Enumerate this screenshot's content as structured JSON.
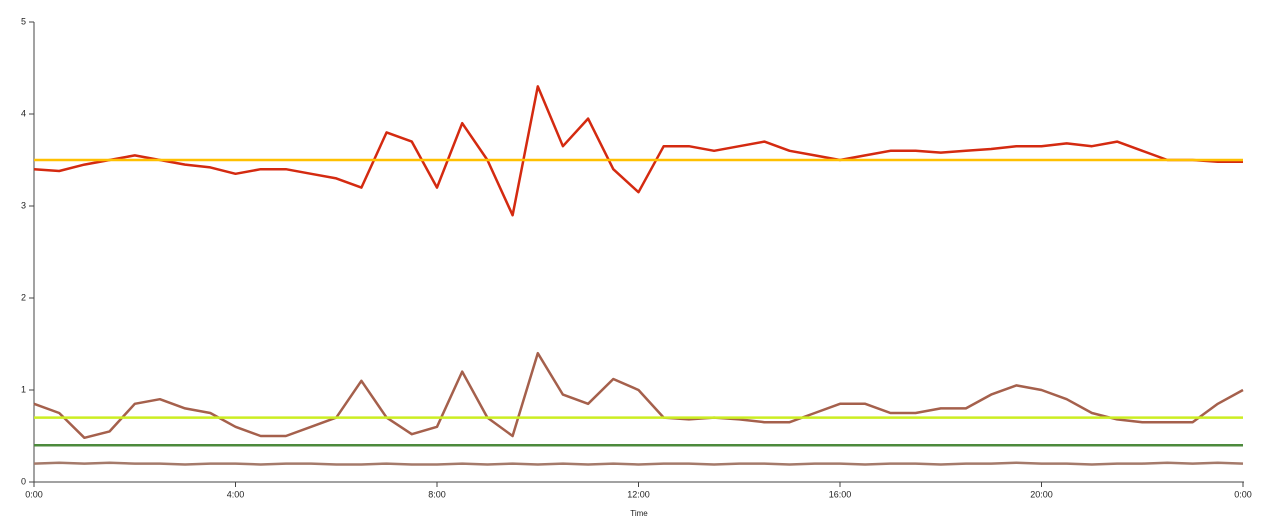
{
  "chart_data": {
    "type": "line",
    "x_label": "Time",
    "x": [
      0,
      0.5,
      1,
      1.5,
      2,
      2.5,
      3,
      3.5,
      4,
      4.5,
      5,
      5.5,
      6,
      6.5,
      7,
      7.5,
      8,
      8.5,
      9,
      9.5,
      10,
      10.5,
      11,
      11.5,
      12,
      12.5,
      13,
      13.5,
      14,
      14.5,
      15,
      15.5,
      16,
      16.5,
      17,
      17.5,
      18,
      18.5,
      19,
      19.5,
      20,
      20.5,
      21,
      21.5,
      22,
      22.5,
      23,
      23.5,
      24
    ],
    "xlim": [
      0,
      24
    ],
    "xticks": [
      {
        "value": 0,
        "label": "0:00"
      },
      {
        "value": 4,
        "label": "4:00"
      },
      {
        "value": 8,
        "label": "8:00"
      },
      {
        "value": 12,
        "label": "12:00"
      },
      {
        "value": 16,
        "label": "16:00"
      },
      {
        "value": 20,
        "label": "20:00"
      },
      {
        "value": 24,
        "label": "0:00"
      }
    ],
    "ylim": [
      0,
      5
    ],
    "yticks": [
      0,
      1,
      2,
      3,
      4,
      5
    ],
    "series": [
      {
        "color": "#d42a10",
        "values": [
          3.4,
          3.38,
          3.45,
          3.5,
          3.55,
          3.5,
          3.45,
          3.42,
          3.35,
          3.4,
          3.4,
          3.35,
          3.3,
          3.2,
          3.8,
          3.7,
          3.2,
          3.9,
          3.5,
          2.9,
          4.3,
          3.65,
          3.95,
          3.4,
          3.15,
          3.65,
          3.65,
          3.6,
          3.65,
          3.7,
          3.6,
          3.55,
          3.5,
          3.55,
          3.6,
          3.6,
          3.58,
          3.6,
          3.62,
          3.65,
          3.65,
          3.68,
          3.65,
          3.7,
          3.6,
          3.5,
          3.5,
          3.48,
          3.48
        ]
      },
      {
        "color": "#ffc000",
        "values": [
          3.5,
          3.5,
          3.5,
          3.5,
          3.5,
          3.5,
          3.5,
          3.5,
          3.5,
          3.5,
          3.5,
          3.5,
          3.5,
          3.5,
          3.5,
          3.5,
          3.5,
          3.5,
          3.5,
          3.5,
          3.5,
          3.5,
          3.5,
          3.5,
          3.5,
          3.5,
          3.5,
          3.5,
          3.5,
          3.5,
          3.5,
          3.5,
          3.5,
          3.5,
          3.5,
          3.5,
          3.5,
          3.5,
          3.5,
          3.5,
          3.5,
          3.5,
          3.5,
          3.5,
          3.5,
          3.5,
          3.5,
          3.5,
          3.5
        ]
      },
      {
        "color": "#a5604c",
        "values": [
          0.85,
          0.75,
          0.48,
          0.55,
          0.85,
          0.9,
          0.8,
          0.75,
          0.6,
          0.5,
          0.5,
          0.6,
          0.7,
          1.1,
          0.7,
          0.52,
          0.6,
          1.2,
          0.7,
          0.5,
          1.4,
          0.95,
          0.85,
          1.12,
          1.0,
          0.7,
          0.68,
          0.7,
          0.68,
          0.65,
          0.65,
          0.75,
          0.85,
          0.85,
          0.75,
          0.75,
          0.8,
          0.8,
          0.95,
          1.05,
          1.0,
          0.9,
          0.75,
          0.68,
          0.65,
          0.65,
          0.65,
          0.85,
          1.0
        ]
      },
      {
        "color": "#ccee22",
        "values": [
          0.7,
          0.7,
          0.7,
          0.7,
          0.7,
          0.7,
          0.7,
          0.7,
          0.7,
          0.7,
          0.7,
          0.7,
          0.7,
          0.7,
          0.7,
          0.7,
          0.7,
          0.7,
          0.7,
          0.7,
          0.7,
          0.7,
          0.7,
          0.7,
          0.7,
          0.7,
          0.7,
          0.7,
          0.7,
          0.7,
          0.7,
          0.7,
          0.7,
          0.7,
          0.7,
          0.7,
          0.7,
          0.7,
          0.7,
          0.7,
          0.7,
          0.7,
          0.7,
          0.7,
          0.7,
          0.7,
          0.7,
          0.7,
          0.7
        ]
      },
      {
        "color": "#4c8a3c",
        "values": [
          0.4,
          0.4,
          0.4,
          0.4,
          0.4,
          0.4,
          0.4,
          0.4,
          0.4,
          0.4,
          0.4,
          0.4,
          0.4,
          0.4,
          0.4,
          0.4,
          0.4,
          0.4,
          0.4,
          0.4,
          0.4,
          0.4,
          0.4,
          0.4,
          0.4,
          0.4,
          0.4,
          0.4,
          0.4,
          0.4,
          0.4,
          0.4,
          0.4,
          0.4,
          0.4,
          0.4,
          0.4,
          0.4,
          0.4,
          0.4,
          0.4,
          0.4,
          0.4,
          0.4,
          0.4,
          0.4,
          0.4,
          0.4,
          0.4
        ]
      },
      {
        "color": "#a57a6a",
        "values": [
          0.2,
          0.21,
          0.2,
          0.21,
          0.2,
          0.2,
          0.19,
          0.2,
          0.2,
          0.19,
          0.2,
          0.2,
          0.19,
          0.19,
          0.2,
          0.19,
          0.19,
          0.2,
          0.19,
          0.2,
          0.19,
          0.2,
          0.19,
          0.2,
          0.19,
          0.2,
          0.2,
          0.19,
          0.2,
          0.2,
          0.19,
          0.2,
          0.2,
          0.19,
          0.2,
          0.2,
          0.19,
          0.2,
          0.2,
          0.21,
          0.2,
          0.2,
          0.19,
          0.2,
          0.2,
          0.21,
          0.2,
          0.21,
          0.2
        ]
      }
    ]
  }
}
